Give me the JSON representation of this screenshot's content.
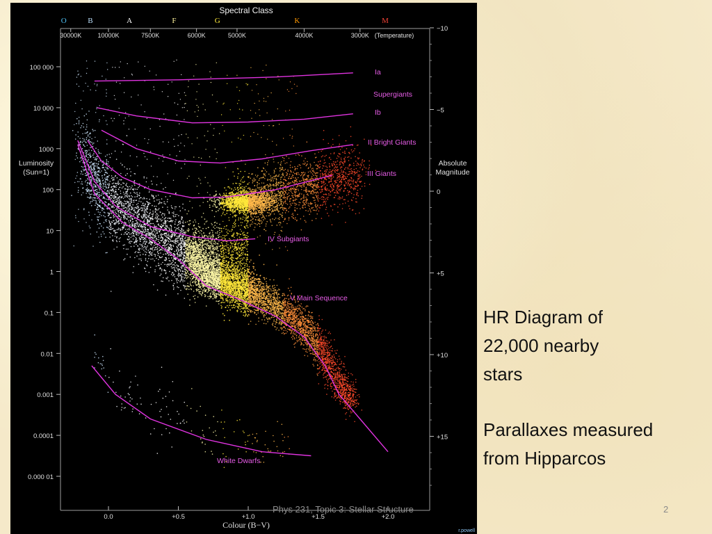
{
  "slide": {
    "caption_line1": "HR Diagram of",
    "caption_line2": "22,000 nearby",
    "caption_line3": "stars",
    "caption_line4": "Parallaxes measured",
    "caption_line5": "from Hipparcos",
    "footer_text": "Phys 231, Topic 3: Stellar Structure",
    "slide_number": "2",
    "credit": "r.powell"
  },
  "chart_data": {
    "type": "scatter",
    "title": "Spectral Class",
    "xlabel": "Colour (B−V)",
    "ylabel_left": "Luminosity (Sun=1)",
    "ylabel_right": "Absolute Magnitude",
    "temperature_label": "(Temperature)",
    "x_ticks": [
      {
        "x": 0.0,
        "label": "0.0"
      },
      {
        "x": 0.5,
        "label": "+0.5"
      },
      {
        "x": 1.0,
        "label": "+1.0"
      },
      {
        "x": 1.5,
        "label": "+1.5"
      },
      {
        "x": 2.0,
        "label": "+2.0"
      }
    ],
    "spectral_classes": [
      {
        "label": "O",
        "x": -0.32,
        "color": "#4fc3f7"
      },
      {
        "label": "B",
        "x": -0.13,
        "color": "#bbdefb"
      },
      {
        "label": "A",
        "x": 0.15,
        "color": "#ffffff"
      },
      {
        "label": "F",
        "x": 0.47,
        "color": "#fff59d"
      },
      {
        "label": "G",
        "x": 0.78,
        "color": "#ffeb3b"
      },
      {
        "label": "K",
        "x": 1.35,
        "color": "#ff9800"
      },
      {
        "label": "M",
        "x": 1.98,
        "color": "#f44336"
      }
    ],
    "temperature_ticks": [
      {
        "x": -0.27,
        "label": "30000K"
      },
      {
        "x": 0.0,
        "label": "10000K"
      },
      {
        "x": 0.3,
        "label": "7500K"
      },
      {
        "x": 0.63,
        "label": "6000K"
      },
      {
        "x": 0.92,
        "label": "5000K"
      },
      {
        "x": 1.4,
        "label": "4000K"
      },
      {
        "x": 1.8,
        "label": "3000K"
      }
    ],
    "luminosity_ticks": [
      {
        "log": 5,
        "label": "100 000"
      },
      {
        "log": 4,
        "label": "10 000"
      },
      {
        "log": 3,
        "label": "1000"
      },
      {
        "log": 2,
        "label": "100"
      },
      {
        "log": 1,
        "label": "10"
      },
      {
        "log": 0,
        "label": "1"
      },
      {
        "log": -1,
        "label": "0.1"
      },
      {
        "log": -2,
        "label": "0.01"
      },
      {
        "log": -3,
        "label": "0.001"
      },
      {
        "log": -4,
        "label": "0.0001"
      },
      {
        "log": -5,
        "label": "0.000 01"
      }
    ],
    "magnitude_ticks": [
      {
        "mag": -10,
        "label": "−10"
      },
      {
        "mag": -5,
        "label": "−5"
      },
      {
        "mag": 0,
        "label": "0"
      },
      {
        "mag": 5,
        "label": "+5"
      },
      {
        "mag": 10,
        "label": "+10"
      },
      {
        "mag": 15,
        "label": "+15"
      }
    ],
    "luminosity_classes": [
      {
        "name": "Ia",
        "label": "Ia",
        "label_x": 2.0,
        "label_log": 4.85,
        "points": [
          [
            -0.1,
            4.65
          ],
          [
            0.5,
            4.68
          ],
          [
            1.2,
            4.75
          ],
          [
            1.75,
            4.85
          ]
        ]
      },
      {
        "name": "Ia-label",
        "label": "Supergiants",
        "label_x": 1.98,
        "label_log": 4.35,
        "points": []
      },
      {
        "name": "Ib",
        "label": "Ib",
        "label_x": 2.0,
        "label_log": 3.85,
        "points": [
          [
            -0.08,
            4.0
          ],
          [
            0.2,
            3.8
          ],
          [
            0.6,
            3.63
          ],
          [
            1.0,
            3.65
          ],
          [
            1.4,
            3.72
          ],
          [
            1.75,
            3.85
          ]
        ]
      },
      {
        "name": "II",
        "label": "II Bright Giants",
        "label_x": 1.88,
        "label_log": 3.1,
        "points": [
          [
            -0.05,
            3.45
          ],
          [
            0.2,
            3.0
          ],
          [
            0.5,
            2.7
          ],
          [
            0.8,
            2.65
          ],
          [
            1.1,
            2.75
          ],
          [
            1.45,
            2.95
          ],
          [
            1.75,
            3.1
          ]
        ]
      },
      {
        "name": "III",
        "label": "III    Giants",
        "label_x": 1.72,
        "label_log": 2.35,
        "points": [
          [
            -0.15,
            3.2
          ],
          [
            -0.05,
            2.7
          ],
          [
            0.1,
            2.3
          ],
          [
            0.3,
            2.0
          ],
          [
            0.6,
            1.8
          ],
          [
            0.85,
            1.82
          ],
          [
            1.2,
            2.0
          ],
          [
            1.6,
            2.35
          ]
        ]
      },
      {
        "name": "IV",
        "label": "IV  Subgiants",
        "label_x": 1.15,
        "label_log": 0.75,
        "points": [
          [
            -0.22,
            3.2
          ],
          [
            -0.1,
            2.2
          ],
          [
            0.05,
            1.6
          ],
          [
            0.3,
            1.1
          ],
          [
            0.6,
            0.85
          ],
          [
            0.85,
            0.75
          ],
          [
            1.05,
            0.8
          ]
        ]
      },
      {
        "name": "V",
        "label": "V  Main Sequence",
        "label_x": 1.3,
        "label_log": -0.7,
        "points": [
          [
            -0.22,
            3.1
          ],
          [
            -0.1,
            1.9
          ],
          [
            0.1,
            1.2
          ],
          [
            0.3,
            0.8
          ],
          [
            0.5,
            0.3
          ],
          [
            0.7,
            -0.35
          ],
          [
            0.95,
            -0.7
          ],
          [
            1.2,
            -1.1
          ],
          [
            1.4,
            -1.6
          ],
          [
            1.55,
            -2.3
          ],
          [
            1.65,
            -3.0
          ],
          [
            1.8,
            -3.6
          ],
          [
            2.0,
            -4.4
          ]
        ]
      },
      {
        "name": "WD",
        "label": "White Dwarfs",
        "label_x": 0.85,
        "label_log": -4.65,
        "points": [
          [
            -0.12,
            -2.3
          ],
          [
            0.05,
            -3.0
          ],
          [
            0.3,
            -3.6
          ],
          [
            0.7,
            -4.1
          ],
          [
            1.1,
            -4.4
          ],
          [
            1.45,
            -4.5
          ]
        ]
      }
    ],
    "star_count": 22000
  }
}
